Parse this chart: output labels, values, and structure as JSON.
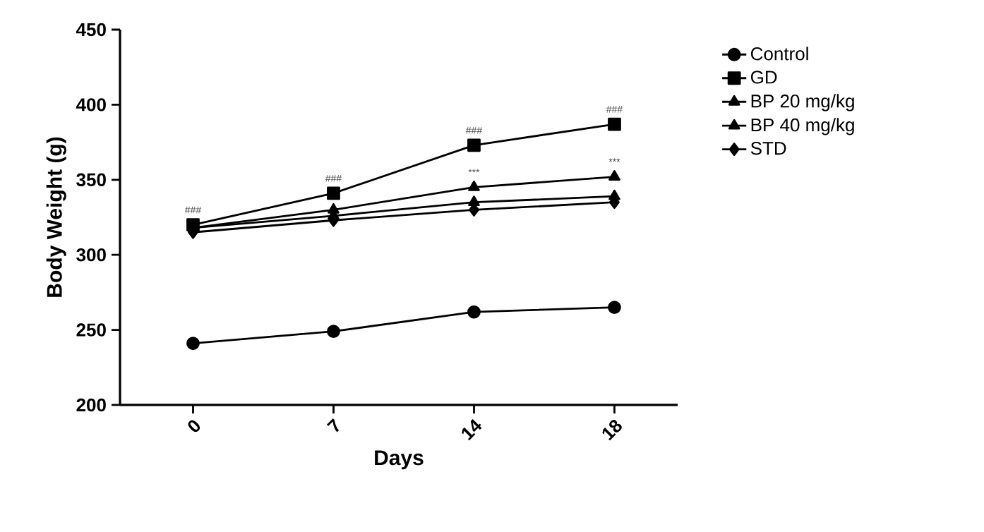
{
  "chart_data": {
    "type": "line",
    "xlabel": "Days",
    "ylabel": "Body Weight (g)",
    "categories": [
      "0",
      "7",
      "14",
      "18"
    ],
    "ylim": [
      200,
      450
    ],
    "yticks": [
      200,
      250,
      300,
      350,
      400,
      450
    ],
    "legend": "right",
    "grid": false,
    "line_style": "solid",
    "series": [
      {
        "name": "Control",
        "color": "#000000",
        "marker": "circle",
        "values": [
          241,
          249,
          262,
          265
        ]
      },
      {
        "name": "GD",
        "color": "#000000",
        "marker": "square",
        "values": [
          320,
          341,
          373,
          387
        ]
      },
      {
        "name": "BP 20 mg/kg",
        "color": "#000000",
        "marker": "triangle",
        "values": [
          318,
          330,
          345,
          352
        ]
      },
      {
        "name": "BP 40 mg/kg",
        "color": "#000000",
        "marker": "triangle down",
        "values": [
          318,
          326,
          335,
          339
        ]
      },
      {
        "name": "STD",
        "color": "#000000",
        "marker": "diamond",
        "values": [
          315,
          323,
          330,
          335
        ]
      }
    ],
    "annotations": [
      {
        "text": "###",
        "x": "0",
        "y": 320
      },
      {
        "text": "###",
        "x": "7",
        "y": 341
      },
      {
        "text": "###",
        "x": "14",
        "y": 373
      },
      {
        "text": "###",
        "x": "18",
        "y": 387
      },
      {
        "text": "***",
        "x": "14",
        "y": 345
      },
      {
        "text": "***",
        "x": "18",
        "y": 352
      }
    ]
  }
}
